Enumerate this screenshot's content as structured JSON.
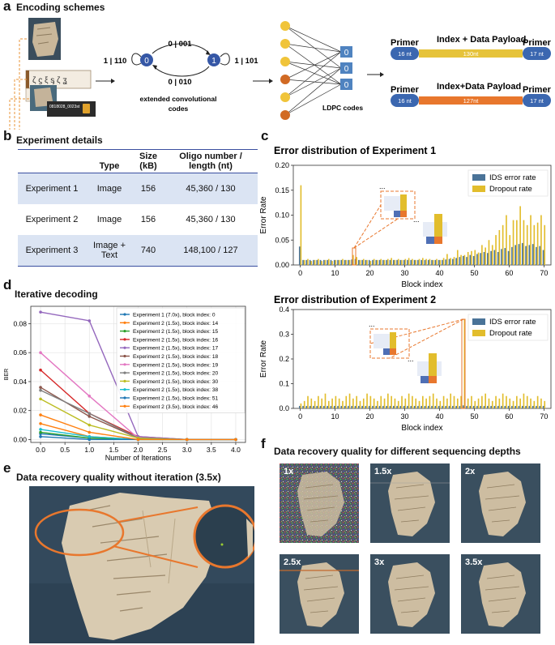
{
  "panels": {
    "a": {
      "letter": "a",
      "title": "Encoding schemes"
    },
    "b": {
      "letter": "b",
      "title": "Experiment details"
    },
    "c": {
      "letter": "c"
    },
    "d": {
      "letter": "d",
      "title": "Iterative decoding"
    },
    "e": {
      "letter": "e",
      "title": "Data recovery quality without iteration (3.5x)"
    },
    "f": {
      "letter": "f",
      "title": "Data recovery quality for different sequencing depths"
    }
  },
  "encoding": {
    "doc_text": "0818028_0023st",
    "state_labels": [
      "0",
      "1"
    ],
    "transitions": {
      "top": "0 | 001",
      "bottom": "0 | 010",
      "left": "1 | 110",
      "right": "1 | 101"
    },
    "conv_caption_line1": "extended convolutional",
    "conv_caption_line2": "codes",
    "check_nodes": [
      "0",
      "0",
      "0"
    ],
    "ldpc_caption": "LDPC codes",
    "oligo1": {
      "primer_left": "Primer",
      "primer_right": "Primer",
      "payload_title": "Index + Data Payload",
      "left_nt": "16 nt",
      "payload_nt": "130nt",
      "right_nt": "17 nt"
    },
    "oligo2": {
      "primer_left": "Primer",
      "primer_right": "Primer",
      "payload_title": "Index+Data Payload",
      "left_nt": "16 nt",
      "payload_nt": "127nt",
      "right_nt": "17 nt"
    }
  },
  "experiment_table": {
    "headers": [
      "",
      "Type",
      "Size (kB)",
      "Oligo number / length (nt)"
    ],
    "rows": [
      {
        "name": "Experiment 1",
        "type": "Image",
        "size": "156",
        "oligo": "45,360 / 130"
      },
      {
        "name": "Experiment 2",
        "type": "Image",
        "size": "156",
        "oligo": "45,360 / 130"
      },
      {
        "name": "Experiment 3",
        "type": "Image + Text",
        "size": "740",
        "oligo": "148,100 / 127"
      }
    ]
  },
  "colors": {
    "ids": "#4a7398",
    "dropout": "#e2bd2c",
    "orange": "#e8772d",
    "blue_node": "#3557a6",
    "check_node": "#4f83c0",
    "node_yellow": "#f0c43a",
    "node_orange": "#d16a24"
  },
  "chart_data": [
    {
      "type": "bar",
      "title": "Error distribution of Experiment 1",
      "xlabel": "Block index",
      "ylabel": "Error Rate",
      "xlim": [
        -2,
        72
      ],
      "ylim": [
        0,
        0.2
      ],
      "xticks": [
        0,
        10,
        20,
        30,
        40,
        50,
        60,
        70
      ],
      "yticks": [
        0.0,
        0.05,
        0.1,
        0.15,
        0.2
      ],
      "ytick_labels": [
        "0.00",
        "0.05",
        "0.10",
        "0.15",
        "0.20"
      ],
      "legend": "top-right",
      "ellipsis": "...",
      "series": [
        {
          "name": "IDS error rate",
          "values": [
            0.037,
            0.01,
            0.01,
            0.01,
            0.01,
            0.01,
            0.01,
            0.01,
            0.01,
            0.01,
            0.01,
            0.01,
            0.01,
            0.01,
            0.01,
            0.011,
            0.012,
            0.01,
            0.01,
            0.01,
            0.01,
            0.01,
            0.01,
            0.01,
            0.01,
            0.01,
            0.01,
            0.01,
            0.01,
            0.01,
            0.01,
            0.01,
            0.01,
            0.01,
            0.01,
            0.01,
            0.01,
            0.01,
            0.01,
            0.01,
            0.01,
            0.01,
            0.011,
            0.012,
            0.012,
            0.014,
            0.016,
            0.018,
            0.016,
            0.02,
            0.018,
            0.022,
            0.024,
            0.026,
            0.024,
            0.028,
            0.03,
            0.026,
            0.032,
            0.034,
            0.028,
            0.036,
            0.04,
            0.042,
            0.044,
            0.038,
            0.04,
            0.042,
            0.036,
            0.038,
            0.03
          ]
        },
        {
          "name": "Dropout rate",
          "values": [
            0.16,
            0.01,
            0.012,
            0.008,
            0.01,
            0.012,
            0.008,
            0.01,
            0.012,
            0.008,
            0.01,
            0.01,
            0.012,
            0.01,
            0.01,
            0.02,
            0.016,
            0.01,
            0.012,
            0.01,
            0.008,
            0.012,
            0.01,
            0.012,
            0.01,
            0.012,
            0.014,
            0.01,
            0.012,
            0.01,
            0.012,
            0.014,
            0.012,
            0.01,
            0.012,
            0.014,
            0.012,
            0.012,
            0.01,
            0.012,
            0.01,
            0.014,
            0.022,
            0.014,
            0.016,
            0.03,
            0.02,
            0.02,
            0.026,
            0.028,
            0.03,
            0.025,
            0.04,
            0.035,
            0.05,
            0.04,
            0.06,
            0.07,
            0.08,
            0.1,
            0.06,
            0.09,
            0.09,
            0.118,
            0.09,
            0.08,
            0.1,
            0.08,
            0.085,
            0.1,
            0.08
          ]
        }
      ]
    },
    {
      "type": "bar",
      "title": "Error distribution of Experiment 2",
      "xlabel": "Block index",
      "ylabel": "Error Rate",
      "xlim": [
        -2,
        72
      ],
      "ylim": [
        0,
        0.4
      ],
      "xticks": [
        0,
        10,
        20,
        30,
        40,
        50,
        60,
        70
      ],
      "yticks": [
        0.0,
        0.1,
        0.2,
        0.3,
        0.4
      ],
      "ytick_labels": [
        "0.0",
        "0.1",
        "0.2",
        "0.3",
        "0.4"
      ],
      "legend": "top-right",
      "ellipsis": "...",
      "series": [
        {
          "name": "IDS error rate",
          "values": [
            0.01,
            0.01,
            0.01,
            0.01,
            0.01,
            0.01,
            0.01,
            0.01,
            0.01,
            0.01,
            0.01,
            0.01,
            0.01,
            0.01,
            0.01,
            0.01,
            0.01,
            0.01,
            0.01,
            0.01,
            0.01,
            0.01,
            0.01,
            0.01,
            0.01,
            0.01,
            0.01,
            0.01,
            0.01,
            0.01,
            0.01,
            0.01,
            0.01,
            0.01,
            0.01,
            0.01,
            0.01,
            0.01,
            0.01,
            0.01,
            0.01,
            0.01,
            0.01,
            0.01,
            0.01,
            0.01,
            0.01,
            0.012,
            0.01,
            0.01,
            0.01,
            0.01,
            0.01,
            0.01,
            0.01,
            0.01,
            0.01,
            0.01,
            0.01,
            0.01,
            0.01,
            0.01,
            0.01,
            0.01,
            0.01,
            0.01,
            0.01,
            0.01,
            0.01,
            0.01,
            0.01
          ]
        },
        {
          "name": "Dropout rate",
          "values": [
            0.02,
            0.03,
            0.05,
            0.04,
            0.03,
            0.05,
            0.04,
            0.06,
            0.03,
            0.04,
            0.05,
            0.04,
            0.03,
            0.05,
            0.06,
            0.04,
            0.05,
            0.03,
            0.04,
            0.06,
            0.05,
            0.04,
            0.03,
            0.05,
            0.04,
            0.06,
            0.05,
            0.04,
            0.03,
            0.05,
            0.04,
            0.06,
            0.05,
            0.04,
            0.03,
            0.05,
            0.04,
            0.05,
            0.06,
            0.04,
            0.03,
            0.05,
            0.04,
            0.06,
            0.05,
            0.04,
            0.05,
            0.36,
            0.04,
            0.05,
            0.03,
            0.04,
            0.05,
            0.06,
            0.04,
            0.03,
            0.05,
            0.04,
            0.06,
            0.05,
            0.04,
            0.03,
            0.05,
            0.04,
            0.06,
            0.05,
            0.04,
            0.03,
            0.05,
            0.04,
            0.03
          ]
        }
      ]
    },
    {
      "type": "line",
      "xlabel": "Number of Iterations",
      "ylabel": "BER",
      "xlim": [
        -0.2,
        4.2
      ],
      "ylim": [
        -0.002,
        0.092
      ],
      "xticks": [
        0.0,
        0.5,
        1.0,
        1.5,
        2.0,
        2.5,
        3.0,
        3.5,
        4.0
      ],
      "xtick_labels": [
        "0.0",
        "0.5",
        "1.0",
        "1.5",
        "2.0",
        "2.5",
        "3.0",
        "3.5",
        "4.0"
      ],
      "yticks": [
        0.0,
        0.02,
        0.04,
        0.06,
        0.08
      ],
      "ytick_labels": [
        "0.00",
        "0.02",
        "0.04",
        "0.06",
        "0.08"
      ],
      "legend": "top-right",
      "x": [
        0,
        1,
        2,
        3,
        4
      ],
      "series": [
        {
          "name": "Experiment 1 (7.0x), block index: 0",
          "color": "#1f77b4",
          "values": [
            0.004,
            0.001,
            0,
            0,
            0
          ]
        },
        {
          "name": "Experiment 2 (1.5x), block index: 14",
          "color": "#ff7f0e",
          "values": [
            0.011,
            0.002,
            0,
            0,
            0
          ]
        },
        {
          "name": "Experiment 2 (1.5x), block index: 15",
          "color": "#2ca02c",
          "values": [
            0.005,
            0.001,
            0,
            0,
            0
          ]
        },
        {
          "name": "Experiment 2 (1.5x), block index: 16",
          "color": "#d62728",
          "values": [
            0.048,
            0.018,
            0.002,
            0,
            0
          ]
        },
        {
          "name": "Experiment 2 (1.5x), block index: 17",
          "color": "#9467bd",
          "values": [
            0.088,
            0.082,
            0.002,
            0,
            0
          ]
        },
        {
          "name": "Experiment 2 (1.5x), block index: 18",
          "color": "#8c564b",
          "values": [
            0.036,
            0.016,
            0.001,
            0,
            0
          ]
        },
        {
          "name": "Experiment 2 (1.5x), block index: 19",
          "color": "#e377c2",
          "values": [
            0.06,
            0.03,
            0.001,
            0,
            0
          ]
        },
        {
          "name": "Experiment 2 (1.5x), block index: 20",
          "color": "#7f7f7f",
          "values": [
            0.034,
            0.018,
            0.001,
            0,
            0
          ]
        },
        {
          "name": "Experiment 2 (1.5x), block index: 30",
          "color": "#bcbd22",
          "values": [
            0.028,
            0.01,
            0.001,
            0,
            0
          ]
        },
        {
          "name": "Experiment 2 (1.5x), block index: 38",
          "color": "#17becf",
          "values": [
            0.007,
            0.002,
            0,
            0,
            0
          ]
        },
        {
          "name": "Experiment 2 (1.5x), block index: 51",
          "color": "#1f77b4",
          "values": [
            0.002,
            0,
            0,
            0,
            0
          ]
        },
        {
          "name": "Experiment 2 (3.5x), block index: 46",
          "color": "#ff7f0e",
          "values": [
            0.017,
            0.005,
            0,
            0,
            0
          ]
        }
      ]
    }
  ],
  "depth_labels": [
    "1x",
    "1.5x",
    "2x",
    "2.5x",
    "3x",
    "3.5x"
  ]
}
